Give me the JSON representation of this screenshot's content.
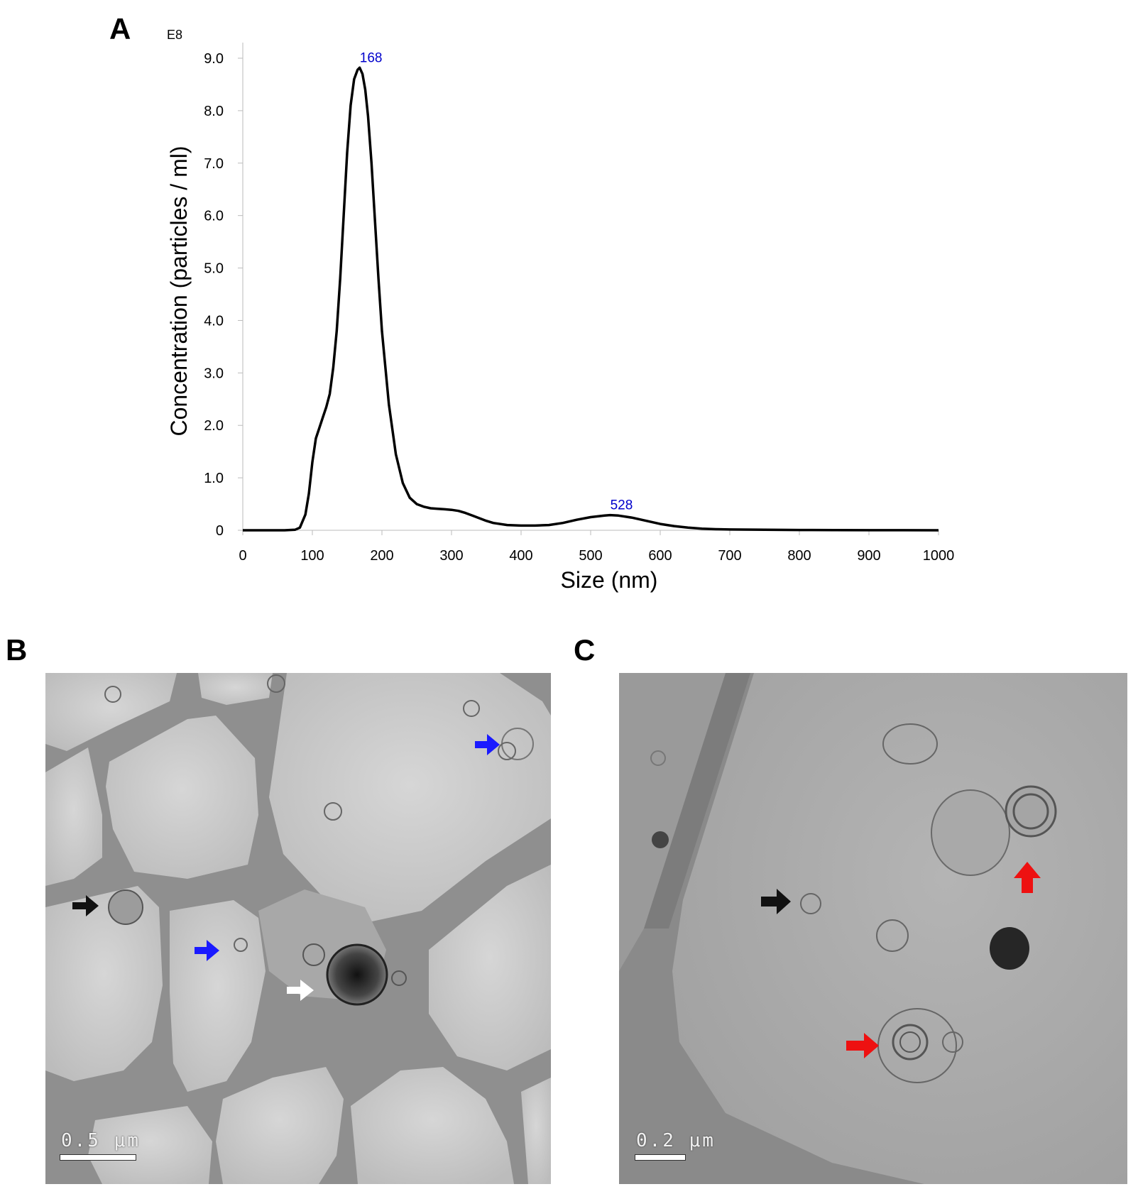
{
  "panels": {
    "a_label": "A",
    "b_label": "B",
    "c_label": "C"
  },
  "chart_data": {
    "type": "line",
    "xlabel": "Size (nm)",
    "ylabel": "Concentration (particles / ml)",
    "y_multiplier_label": "E8",
    "xlim": [
      0,
      1000
    ],
    "ylim": [
      0,
      9.0
    ],
    "x_ticks": [
      0,
      100,
      200,
      300,
      400,
      500,
      600,
      700,
      800,
      900,
      1000
    ],
    "y_ticks": [
      0,
      1.0,
      2.0,
      3.0,
      4.0,
      5.0,
      6.0,
      7.0,
      8.0,
      9.0
    ],
    "y_tick_labels": [
      "0",
      "1.0",
      "2.0",
      "3.0",
      "4.0",
      "5.0",
      "6.0",
      "7.0",
      "8.0",
      "9.0"
    ],
    "grid": false,
    "line_color": "#000000",
    "annotation_color": "#0000cc",
    "annotations": [
      {
        "text": "168",
        "x": 168,
        "y": 8.82
      },
      {
        "text": "528",
        "x": 528,
        "y": 0.29
      }
    ],
    "series": [
      {
        "x": [
          0,
          60,
          75,
          82,
          90,
          95,
          100,
          105,
          110,
          115,
          120,
          125,
          130,
          135,
          140,
          145,
          150,
          155,
          160,
          165,
          168,
          172,
          176,
          180,
          185,
          190,
          195,
          200,
          210,
          220,
          230,
          240,
          250,
          260,
          270,
          280,
          290,
          300,
          310,
          320,
          330,
          340,
          350,
          360,
          380,
          400,
          420,
          440,
          460,
          480,
          500,
          520,
          528,
          540,
          560,
          580,
          600,
          620,
          640,
          660,
          680,
          700,
          750,
          800,
          850,
          900,
          950,
          1000
        ],
        "y": [
          0,
          0,
          0.01,
          0.05,
          0.3,
          0.7,
          1.3,
          1.75,
          1.95,
          2.15,
          2.35,
          2.6,
          3.1,
          3.8,
          4.8,
          6.0,
          7.2,
          8.1,
          8.6,
          8.78,
          8.82,
          8.7,
          8.4,
          7.9,
          7.0,
          5.9,
          4.8,
          3.8,
          2.4,
          1.45,
          0.9,
          0.62,
          0.5,
          0.45,
          0.42,
          0.41,
          0.4,
          0.39,
          0.37,
          0.33,
          0.28,
          0.23,
          0.18,
          0.14,
          0.1,
          0.09,
          0.09,
          0.1,
          0.14,
          0.2,
          0.25,
          0.28,
          0.29,
          0.28,
          0.24,
          0.18,
          0.12,
          0.08,
          0.05,
          0.03,
          0.02,
          0.015,
          0.01,
          0.005,
          0.003,
          0.002,
          0.001,
          0
        ]
      }
    ]
  },
  "micrograph_b": {
    "scalebar_text": "0.5 μm",
    "arrows": [
      "blue",
      "blue",
      "black",
      "white"
    ]
  },
  "micrograph_c": {
    "scalebar_text": "0.2 μm",
    "arrows": [
      "black",
      "red",
      "red"
    ]
  }
}
